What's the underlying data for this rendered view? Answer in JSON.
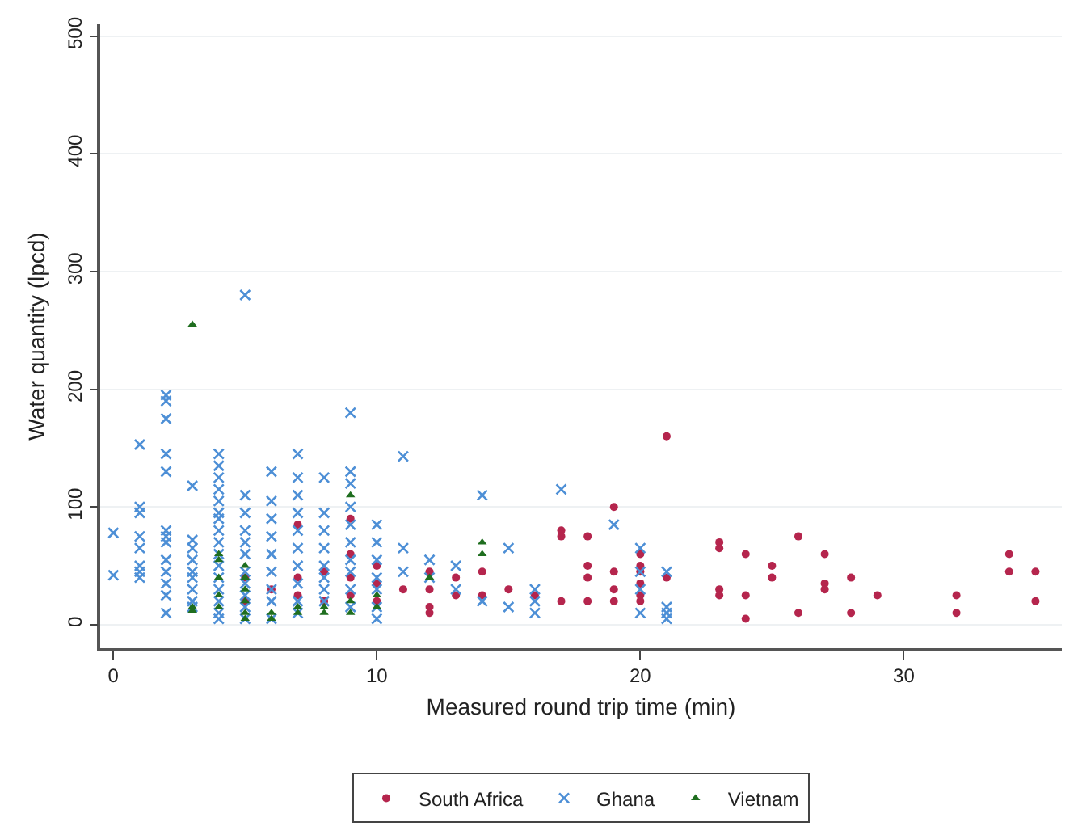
{
  "chart_data": {
    "type": "scatter",
    "xlabel": "Measured round trip time (min)",
    "ylabel": "Water quantity (lpcd)",
    "xlim": [
      -0.5,
      36
    ],
    "xticks": [
      0,
      10,
      20,
      30
    ],
    "ylim": [
      -20,
      510
    ],
    "yticks": [
      0,
      100,
      200,
      300,
      400,
      500
    ],
    "grid": "y",
    "legend": "bottom",
    "series": [
      {
        "name": "South Africa",
        "color": "#b5254d",
        "marker": "circle",
        "x": [
          5,
          5,
          6,
          7,
          7,
          7,
          8,
          8,
          9,
          9,
          9,
          9,
          10,
          10,
          10,
          11,
          12,
          12,
          12,
          12,
          13,
          13,
          14,
          14,
          15,
          16,
          17,
          17,
          17,
          18,
          18,
          18,
          18,
          19,
          19,
          19,
          19,
          20,
          20,
          20,
          20,
          20,
          20,
          21,
          21,
          23,
          23,
          23,
          23,
          24,
          24,
          24,
          25,
          25,
          26,
          26,
          27,
          27,
          27,
          28,
          28,
          29,
          32,
          32,
          34,
          34,
          35,
          35
        ],
        "values": [
          40,
          20,
          30,
          85,
          40,
          25,
          45,
          20,
          90,
          60,
          40,
          25,
          50,
          35,
          20,
          30,
          45,
          30,
          15,
          10,
          40,
          25,
          45,
          25,
          30,
          25,
          80,
          75,
          20,
          75,
          50,
          40,
          20,
          100,
          45,
          30,
          20,
          60,
          50,
          45,
          35,
          25,
          20,
          160,
          40,
          70,
          65,
          30,
          25,
          60,
          25,
          5,
          50,
          40,
          75,
          10,
          60,
          35,
          30,
          40,
          10,
          25,
          25,
          10,
          60,
          45,
          45,
          20
        ]
      },
      {
        "name": "Ghana",
        "color": "#4d8fd6",
        "marker": "cross",
        "x": [
          0,
          0,
          1,
          1,
          1,
          1,
          1,
          1,
          1,
          1,
          2,
          2,
          2,
          2,
          2,
          2,
          2,
          2,
          2,
          2,
          2,
          2,
          2,
          3,
          3,
          3,
          3,
          3,
          3,
          3,
          3,
          3,
          4,
          4,
          4,
          4,
          4,
          4,
          4,
          4,
          4,
          4,
          4,
          4,
          4,
          4,
          4,
          4,
          5,
          5,
          5,
          5,
          5,
          5,
          5,
          5,
          5,
          5,
          5,
          6,
          6,
          6,
          6,
          6,
          6,
          6,
          6,
          6,
          7,
          7,
          7,
          7,
          7,
          7,
          7,
          7,
          7,
          7,
          8,
          8,
          8,
          8,
          8,
          8,
          8,
          8,
          9,
          9,
          9,
          9,
          9,
          9,
          9,
          9,
          9,
          9,
          10,
          10,
          10,
          10,
          10,
          10,
          10,
          11,
          11,
          11,
          12,
          12,
          13,
          13,
          14,
          14,
          15,
          15,
          16,
          16,
          16,
          17,
          19,
          20,
          20,
          20,
          20,
          21,
          21,
          21,
          21
        ],
        "values": [
          42,
          78,
          153,
          100,
          95,
          75,
          65,
          50,
          45,
          40,
          195,
          190,
          175,
          145,
          130,
          80,
          75,
          70,
          55,
          45,
          35,
          25,
          10,
          118,
          72,
          65,
          55,
          45,
          40,
          30,
          20,
          15,
          145,
          135,
          125,
          115,
          105,
          95,
          90,
          80,
          70,
          60,
          50,
          40,
          30,
          20,
          10,
          5,
          280,
          110,
          95,
          80,
          70,
          60,
          45,
          35,
          25,
          15,
          5,
          130,
          105,
          90,
          75,
          60,
          45,
          30,
          20,
          5,
          145,
          125,
          110,
          95,
          80,
          65,
          50,
          35,
          20,
          10,
          125,
          95,
          80,
          65,
          50,
          40,
          30,
          20,
          180,
          130,
          120,
          100,
          85,
          70,
          55,
          45,
          30,
          15,
          85,
          70,
          55,
          40,
          30,
          15,
          5,
          143,
          65,
          45,
          55,
          40,
          50,
          30,
          110,
          20,
          65,
          15,
          30,
          20,
          10,
          115,
          85,
          65,
          45,
          30,
          10,
          45,
          15,
          10,
          5
        ]
      },
      {
        "name": "Vietnam",
        "color": "#1f6e1f",
        "marker": "triangle",
        "x": [
          3,
          3,
          3,
          4,
          4,
          4,
          4,
          4,
          5,
          5,
          5,
          5,
          5,
          5,
          6,
          6,
          7,
          7,
          8,
          8,
          9,
          9,
          9,
          10,
          10,
          12,
          14,
          14
        ],
        "values": [
          255,
          15,
          12,
          60,
          55,
          40,
          25,
          15,
          50,
          40,
          30,
          20,
          10,
          5,
          10,
          5,
          15,
          10,
          15,
          10,
          110,
          20,
          10,
          25,
          15,
          40,
          70,
          60
        ]
      }
    ]
  }
}
